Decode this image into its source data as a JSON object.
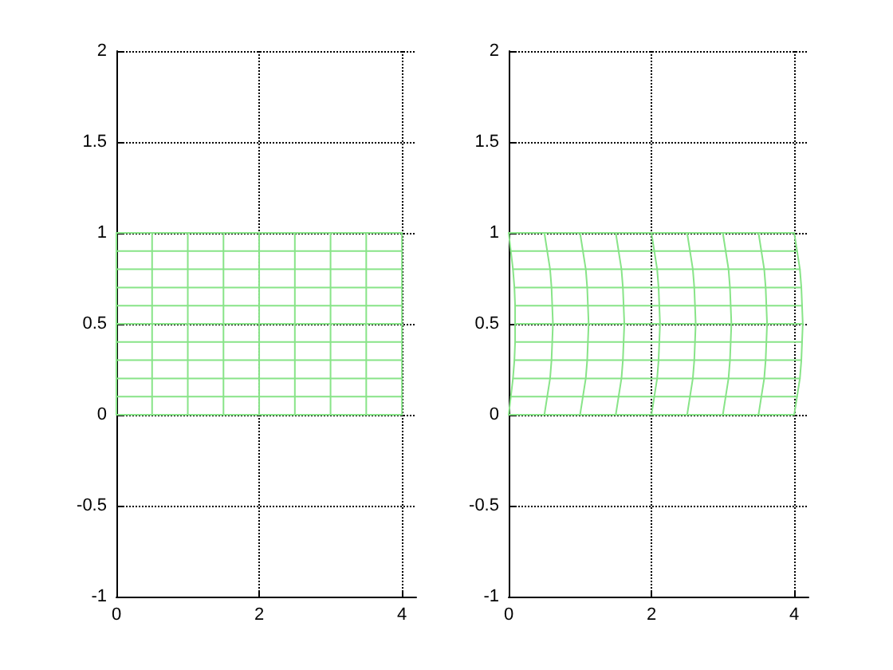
{
  "chart_data": [
    {
      "type": "line",
      "marker": "none",
      "grid": true,
      "xlim": [
        0,
        4.2
      ],
      "xticks": [
        0,
        2,
        4
      ],
      "ylim": [
        -1,
        2
      ],
      "yticks": [
        -1,
        -0.5,
        0,
        0.5,
        1,
        1.5,
        2
      ],
      "series": [
        {
          "color": "#88e488",
          "x": [
            0,
            0
          ],
          "values": [
            0,
            1
          ]
        },
        {
          "color": "#88e488",
          "x": [
            0.5,
            0.5
          ],
          "values": [
            0,
            1
          ]
        },
        {
          "color": "#88e488",
          "x": [
            1,
            1
          ],
          "values": [
            0,
            1
          ]
        },
        {
          "color": "#88e488",
          "x": [
            1.5,
            1.5
          ],
          "values": [
            0,
            1
          ]
        },
        {
          "color": "#88e488",
          "x": [
            2,
            2
          ],
          "values": [
            0,
            1
          ]
        },
        {
          "color": "#88e488",
          "x": [
            2.5,
            2.5
          ],
          "values": [
            0,
            1
          ]
        },
        {
          "color": "#88e488",
          "x": [
            3,
            3
          ],
          "values": [
            0,
            1
          ]
        },
        {
          "color": "#88e488",
          "x": [
            3.5,
            3.5
          ],
          "values": [
            0,
            1
          ]
        },
        {
          "color": "#88e488",
          "x": [
            4,
            4
          ],
          "values": [
            0,
            1
          ]
        },
        {
          "color": "#88e488",
          "x": [
            0,
            4
          ],
          "values": [
            0,
            0
          ]
        },
        {
          "color": "#88e488",
          "x": [
            0,
            4
          ],
          "values": [
            0.1,
            0.1
          ]
        },
        {
          "color": "#88e488",
          "x": [
            0,
            4
          ],
          "values": [
            0.2,
            0.2
          ]
        },
        {
          "color": "#88e488",
          "x": [
            0,
            4
          ],
          "values": [
            0.3,
            0.3
          ]
        },
        {
          "color": "#88e488",
          "x": [
            0,
            4
          ],
          "values": [
            0.4,
            0.4
          ]
        },
        {
          "color": "#88e488",
          "x": [
            0,
            4
          ],
          "values": [
            0.5,
            0.5
          ]
        },
        {
          "color": "#88e488",
          "x": [
            0,
            4
          ],
          "values": [
            0.6,
            0.6
          ]
        },
        {
          "color": "#88e488",
          "x": [
            0,
            4
          ],
          "values": [
            0.7,
            0.7
          ]
        },
        {
          "color": "#88e488",
          "x": [
            0,
            4
          ],
          "values": [
            0.8,
            0.8
          ]
        },
        {
          "color": "#88e488",
          "x": [
            0,
            4
          ],
          "values": [
            0.9,
            0.9
          ]
        },
        {
          "color": "#88e488",
          "x": [
            0,
            4
          ],
          "values": [
            1,
            1
          ]
        }
      ]
    },
    {
      "type": "line",
      "marker": "none",
      "grid": true,
      "xlim": [
        0,
        4.2
      ],
      "xticks": [
        0,
        2,
        4
      ],
      "ylim": [
        -1,
        2
      ],
      "yticks": [
        -1,
        -0.5,
        0,
        0.5,
        1,
        1.5,
        2
      ],
      "series": [
        {
          "color": "#88e488",
          "x": [
            0,
            0.03,
            0.06,
            0.08,
            0.09,
            0.09,
            0.09,
            0.08,
            0.06,
            0.03,
            0
          ],
          "values": [
            0,
            0.1,
            0.2,
            0.3,
            0.4,
            0.5,
            0.6,
            0.7,
            0.8,
            0.9,
            1
          ]
        },
        {
          "color": "#88e488",
          "x": [
            0.5,
            0.54,
            0.58,
            0.6,
            0.61,
            0.62,
            0.61,
            0.6,
            0.58,
            0.54,
            0.5
          ],
          "values": [
            0,
            0.1,
            0.2,
            0.3,
            0.4,
            0.5,
            0.6,
            0.7,
            0.8,
            0.9,
            1
          ]
        },
        {
          "color": "#88e488",
          "x": [
            1,
            1.04,
            1.08,
            1.1,
            1.11,
            1.12,
            1.11,
            1.1,
            1.08,
            1.04,
            1
          ],
          "values": [
            0,
            0.1,
            0.2,
            0.3,
            0.4,
            0.5,
            0.6,
            0.7,
            0.8,
            0.9,
            1
          ]
        },
        {
          "color": "#88e488",
          "x": [
            1.5,
            1.54,
            1.58,
            1.6,
            1.61,
            1.62,
            1.61,
            1.6,
            1.58,
            1.54,
            1.5
          ],
          "values": [
            0,
            0.1,
            0.2,
            0.3,
            0.4,
            0.5,
            0.6,
            0.7,
            0.8,
            0.9,
            1
          ]
        },
        {
          "color": "#88e488",
          "x": [
            2,
            2.04,
            2.08,
            2.1,
            2.11,
            2.12,
            2.11,
            2.1,
            2.08,
            2.04,
            2
          ],
          "values": [
            0,
            0.1,
            0.2,
            0.3,
            0.4,
            0.5,
            0.6,
            0.7,
            0.8,
            0.9,
            1
          ]
        },
        {
          "color": "#88e488",
          "x": [
            2.5,
            2.54,
            2.58,
            2.6,
            2.61,
            2.62,
            2.61,
            2.6,
            2.58,
            2.54,
            2.5
          ],
          "values": [
            0,
            0.1,
            0.2,
            0.3,
            0.4,
            0.5,
            0.6,
            0.7,
            0.8,
            0.9,
            1
          ]
        },
        {
          "color": "#88e488",
          "x": [
            3,
            3.04,
            3.08,
            3.1,
            3.11,
            3.12,
            3.11,
            3.1,
            3.08,
            3.04,
            3
          ],
          "values": [
            0,
            0.1,
            0.2,
            0.3,
            0.4,
            0.5,
            0.6,
            0.7,
            0.8,
            0.9,
            1
          ]
        },
        {
          "color": "#88e488",
          "x": [
            3.5,
            3.54,
            3.58,
            3.6,
            3.61,
            3.62,
            3.61,
            3.6,
            3.58,
            3.54,
            3.5
          ],
          "values": [
            0,
            0.1,
            0.2,
            0.3,
            0.4,
            0.5,
            0.6,
            0.7,
            0.8,
            0.9,
            1
          ]
        },
        {
          "color": "#88e488",
          "x": [
            4,
            4.04,
            4.08,
            4.1,
            4.11,
            4.12,
            4.11,
            4.1,
            4.08,
            4.04,
            4
          ],
          "values": [
            0,
            0.1,
            0.2,
            0.3,
            0.4,
            0.5,
            0.6,
            0.7,
            0.8,
            0.9,
            1
          ]
        },
        {
          "color": "#88e488",
          "x": [
            0,
            4
          ],
          "values": [
            0,
            0
          ]
        },
        {
          "color": "#88e488",
          "x": [
            0.03,
            4.04
          ],
          "values": [
            0.1,
            0.1
          ]
        },
        {
          "color": "#88e488",
          "x": [
            0.06,
            4.08
          ],
          "values": [
            0.2,
            0.2
          ]
        },
        {
          "color": "#88e488",
          "x": [
            0.08,
            4.1
          ],
          "values": [
            0.3,
            0.3
          ]
        },
        {
          "color": "#88e488",
          "x": [
            0.09,
            4.11
          ],
          "values": [
            0.4,
            0.4
          ]
        },
        {
          "color": "#88e488",
          "x": [
            0.09,
            4.12
          ],
          "values": [
            0.5,
            0.5
          ]
        },
        {
          "color": "#88e488",
          "x": [
            0.09,
            4.11
          ],
          "values": [
            0.6,
            0.6
          ]
        },
        {
          "color": "#88e488",
          "x": [
            0.08,
            4.1
          ],
          "values": [
            0.7,
            0.7
          ]
        },
        {
          "color": "#88e488",
          "x": [
            0.06,
            4.08
          ],
          "values": [
            0.8,
            0.8
          ]
        },
        {
          "color": "#88e488",
          "x": [
            0.03,
            4.04
          ],
          "values": [
            0.9,
            0.9
          ]
        },
        {
          "color": "#88e488",
          "x": [
            0,
            4
          ],
          "values": [
            1,
            1
          ]
        }
      ]
    }
  ]
}
